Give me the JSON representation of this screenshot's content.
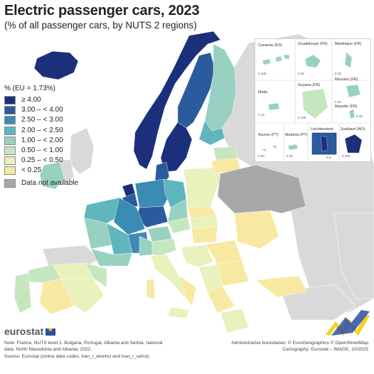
{
  "header": {
    "title": "Electric passenger cars, 2023",
    "subtitle": "(% of all passenger cars, by NUTS 2 regions)"
  },
  "legend": {
    "title": "% (EU = 1.73%)",
    "classes": [
      {
        "label": "≥ 4.00",
        "color": "#1c2f7a"
      },
      {
        "label": "3.00 – < 4.00",
        "color": "#2a5b9c"
      },
      {
        "label": "2.50 – < 3.00",
        "color": "#3b8bb5"
      },
      {
        "label": "2.00 – < 2.50",
        "color": "#5fb6bc"
      },
      {
        "label": "1.00 – < 2.00",
        "color": "#98d1c1"
      },
      {
        "label": "0.50 – < 1.00",
        "color": "#c6e6c0"
      },
      {
        "label": "0.25 – < 0.50",
        "color": "#e9f1bd"
      },
      {
        "label": "< 0.25",
        "color": "#f7e9a2"
      }
    ],
    "not_available": {
      "label": "Data not available",
      "color": "#a8a8a8"
    }
  },
  "insets": {
    "labels": {
      "canarias": "Canarias (ES)",
      "guadeloupe": "Guadeloupe (FR)",
      "martinique": "Martinique (FR)",
      "reunion": "Réunion (FR)",
      "malta": "Malta",
      "guyane": "Guyane (FR)",
      "mayotte": "Mayotte (FR)",
      "acores": "Açores (PT)",
      "madeira": "Madeira (PT)",
      "liechtenstein": "Liechtenstein",
      "svalbard": "Svalbard (NO)"
    },
    "scales": {
      "canarias": "0 100",
      "guadeloupe": "0 25",
      "martinique": "0 20",
      "reunion": "0 20",
      "malta": "0 10",
      "guyane": "0 100",
      "mayotte": "0 15",
      "acores": "0 50",
      "madeira": "0 20",
      "liechtenstein": "0 5",
      "svalbard": "0 100"
    }
  },
  "footer": {
    "brand": "eurostat",
    "note_lines": [
      "Note: France, NUTS level 1. Bulgaria, Portugal, Albania and Serbia: national",
      "data. North Macedonia and Albania: 2022.",
      "Source: Eurostat (online data codes: tran_r_elvehst and tran_r_vehst)"
    ],
    "credit_lines": [
      "Administrative boundaries: © EuroGeographics © OpenStreetMap",
      "Cartography: Eurostat – IMAGE, 10/2025"
    ]
  },
  "colors": {
    "sea": "#ffffff",
    "non_eu_land": "#d9d9d9",
    "boundary": "#ffffff",
    "country_border": "#555555"
  }
}
